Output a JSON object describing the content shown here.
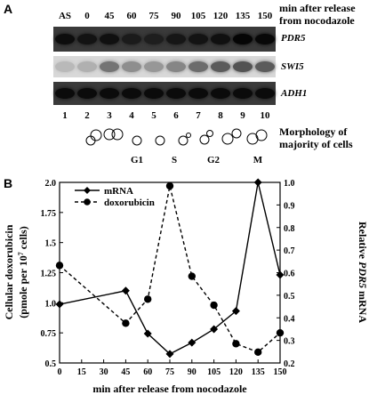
{
  "panel_a": {
    "letter": "A",
    "caption_line1": "min after release",
    "caption_line2": "from nocodazole",
    "lane_headers": [
      "AS",
      "0",
      "45",
      "60",
      "75",
      "90",
      "105",
      "120",
      "135",
      "150"
    ],
    "genes": [
      "PDR5",
      "SWI5",
      "ADH1"
    ],
    "lane_numbers": [
      "1",
      "2",
      "3",
      "4",
      "5",
      "6",
      "7",
      "8",
      "9",
      "10"
    ],
    "morph_line1": "Morphology of",
    "morph_line2": "majority of cells",
    "phases": [
      "G1",
      "S",
      "G2",
      "M"
    ],
    "pdr5_intensity": [
      0.85,
      0.75,
      0.8,
      0.6,
      0.55,
      0.7,
      0.75,
      0.8,
      1.0,
      0.95
    ],
    "swi5_intensity": [
      0.15,
      0.2,
      0.55,
      0.4,
      0.35,
      0.45,
      0.6,
      0.7,
      0.75,
      0.7
    ],
    "adh1_intensity": [
      0.9,
      0.9,
      0.9,
      0.9,
      0.9,
      0.9,
      0.9,
      0.9,
      0.9,
      0.9
    ]
  },
  "panel_b": {
    "letter": "B"
  },
  "chart_data": {
    "type": "line",
    "xlabel": "min after release from nocodazole",
    "ylabel_left_line1": "Cellular doxorubicin",
    "ylabel_left_line2": "(pmole per 10",
    "ylabel_left_sup": "7",
    "ylabel_left_line2_end": " cells)",
    "ylabel_right_prefix": "Relative ",
    "ylabel_right_italic": "PDR5",
    "ylabel_right_suffix": " mRNA",
    "x_ticks": [
      "0",
      "15",
      "30",
      "45",
      "60",
      "75",
      "90",
      "105",
      "120",
      "135",
      "150"
    ],
    "y_left_ticks": [
      "0.5",
      "0.75",
      "1.0",
      "1.25",
      "1.5",
      "1.75",
      "2.0"
    ],
    "y_right_ticks": [
      "0.2",
      "0.3",
      "0.4",
      "0.5",
      "0.6",
      "0.7",
      "0.8",
      "0.9",
      "1.0"
    ],
    "xlim": [
      0,
      150
    ],
    "ylim_left": [
      0.5,
      2.0
    ],
    "ylim_right": [
      0.2,
      1.0
    ],
    "legend_position": "top-left",
    "series": [
      {
        "name": "mRNA",
        "axis": "right",
        "style": "solid",
        "marker": "diamond",
        "x": [
          0,
          45,
          60,
          75,
          90,
          105,
          120,
          135,
          150
        ],
        "y": [
          0.46,
          0.52,
          0.33,
          0.24,
          0.29,
          0.35,
          0.43,
          1.0,
          0.59
        ]
      },
      {
        "name": "doxorubicin",
        "axis": "left",
        "style": "dashed",
        "marker": "circle",
        "x": [
          0,
          45,
          60,
          75,
          90,
          105,
          120,
          135,
          150
        ],
        "y": [
          1.31,
          0.83,
          1.03,
          1.97,
          1.22,
          0.98,
          0.66,
          0.59,
          0.75
        ]
      }
    ]
  }
}
